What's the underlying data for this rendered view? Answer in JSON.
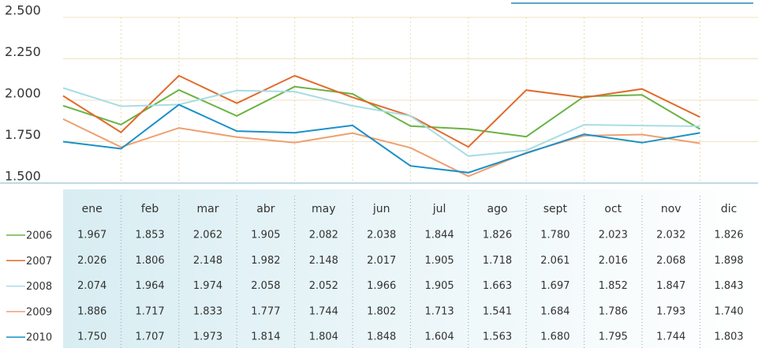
{
  "chart_data": {
    "type": "line",
    "categories": [
      "ene",
      "feb",
      "mar",
      "abr",
      "may",
      "jun",
      "jul",
      "ago",
      "sept",
      "oct",
      "nov",
      "dic"
    ],
    "ylim": [
      1500,
      2500
    ],
    "yticks": [
      {
        "value": 1500,
        "label": "1.500"
      },
      {
        "value": 1750,
        "label": "1.750"
      },
      {
        "value": 2000,
        "label": "2.000"
      },
      {
        "value": 2250,
        "label": "2.250"
      },
      {
        "value": 2500,
        "label": "2.500"
      }
    ],
    "grid": true,
    "series": [
      {
        "name": "2006",
        "color": "#6ab344",
        "values": [
          1967,
          1853,
          2062,
          1905,
          2082,
          2038,
          1844,
          1826,
          1780,
          2023,
          2032,
          1826
        ],
        "value_labels": [
          "1.967",
          "1.853",
          "2.062",
          "1.905",
          "2.082",
          "2.038",
          "1.844",
          "1.826",
          "1.780",
          "2.023",
          "2.032",
          "1.826"
        ]
      },
      {
        "name": "2007",
        "color": "#e06a2c",
        "values": [
          2026,
          1806,
          2148,
          1982,
          2148,
          2017,
          1905,
          1718,
          2061,
          2016,
          2068,
          1898
        ],
        "value_labels": [
          "2.026",
          "1.806",
          "2.148",
          "1.982",
          "2.148",
          "2.017",
          "1.905",
          "1.718",
          "2.061",
          "2.016",
          "2.068",
          "1.898"
        ]
      },
      {
        "name": "2008",
        "color": "#a8dde3",
        "values": [
          2074,
          1964,
          1974,
          2058,
          2052,
          1966,
          1905,
          1663,
          1697,
          1852,
          1847,
          1843
        ],
        "value_labels": [
          "2.074",
          "1.964",
          "1.974",
          "2.058",
          "2.052",
          "1.966",
          "1.905",
          "1.663",
          "1.697",
          "1.852",
          "1.847",
          "1.843"
        ]
      },
      {
        "name": "2009",
        "color": "#eda070",
        "values": [
          1886,
          1717,
          1833,
          1777,
          1744,
          1802,
          1713,
          1541,
          1684,
          1786,
          1793,
          1740
        ],
        "value_labels": [
          "1.886",
          "1.717",
          "1.833",
          "1.777",
          "1.744",
          "1.802",
          "1.713",
          "1.541",
          "1.684",
          "1.786",
          "1.793",
          "1.740"
        ]
      },
      {
        "name": "2010",
        "color": "#1a90c8",
        "values": [
          1750,
          1707,
          1973,
          1814,
          1804,
          1848,
          1604,
          1563,
          1680,
          1795,
          1744,
          1803
        ],
        "value_labels": [
          "1.750",
          "1.707",
          "1.973",
          "1.814",
          "1.804",
          "1.848",
          "1.604",
          "1.563",
          "1.680",
          "1.795",
          "1.744",
          "1.803"
        ]
      }
    ]
  }
}
